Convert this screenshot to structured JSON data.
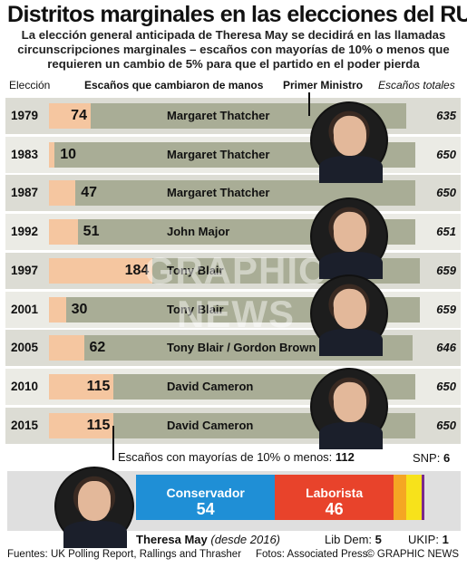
{
  "title": "Distritos marginales en las elecciones del RU",
  "subtitle": "La elección general anticipada de Theresa May se decidirá en las llamadas circunscripciones marginales – escaños con mayorías de 10% o menos que requieren un cambio de 5% para que el partido en el poder pierda",
  "headers": {
    "year": "Elección",
    "seats_changed": "Escaños que cambiaron de manos",
    "pm": "Primer Ministro",
    "total": "Escaños totales"
  },
  "watermark": "GRAPHIC NEWS",
  "chart_data": {
    "type": "bar",
    "categories": [
      "1979",
      "1983",
      "1987",
      "1992",
      "1997",
      "2001",
      "2005",
      "2010",
      "2015"
    ],
    "series": [
      {
        "name": "Escaños que cambiaron de manos",
        "values": [
          74,
          10,
          47,
          51,
          184,
          30,
          62,
          115,
          115
        ]
      },
      {
        "name": "Escaños totales",
        "values": [
          635,
          650,
          650,
          651,
          659,
          659,
          646,
          650,
          650
        ]
      }
    ],
    "pm": [
      "Margaret Thatcher",
      "Margaret Thatcher",
      "Margaret Thatcher",
      "John Major",
      "Tony Blair",
      "Tony Blair",
      "Tony Blair / Gordon Brown",
      "David Cameron",
      "David Cameron"
    ],
    "total_labels": [
      "635",
      "650",
      "650",
      "651",
      "659",
      "659",
      "646",
      "650",
      "650"
    ],
    "seat_labels": [
      "74",
      "10",
      "47",
      "51",
      "184",
      "30",
      "62",
      "115",
      "115"
    ]
  },
  "marginal": {
    "label": "Escaños con mayorías de 10% o menos:",
    "value": "112",
    "parties": [
      {
        "name": "Conservador",
        "value": "54",
        "seats": 54,
        "color": "#1f8fd6"
      },
      {
        "name": "Laborista",
        "value": "46",
        "seats": 46,
        "color": "#e8432b"
      },
      {
        "name": "Lib Dem",
        "value": "5",
        "seats": 5,
        "color": "#f5a623"
      },
      {
        "name": "SNP",
        "value": "6",
        "seats": 6,
        "color": "#f7e21b"
      },
      {
        "name": "UKIP",
        "value": "1",
        "seats": 1,
        "color": "#7b2a8c"
      }
    ],
    "snp_label": "SNP:",
    "libdem_label": "Lib Dem:",
    "ukip_label": "UKIP:"
  },
  "may": {
    "name": "Theresa May",
    "since": "(desde 2016)"
  },
  "footer": {
    "sources": "Fuentes: UK Polling Report, Rallings and Thrasher",
    "photos": "Fotos: Associated Press",
    "copyright": "© GRAPHIC NEWS"
  }
}
